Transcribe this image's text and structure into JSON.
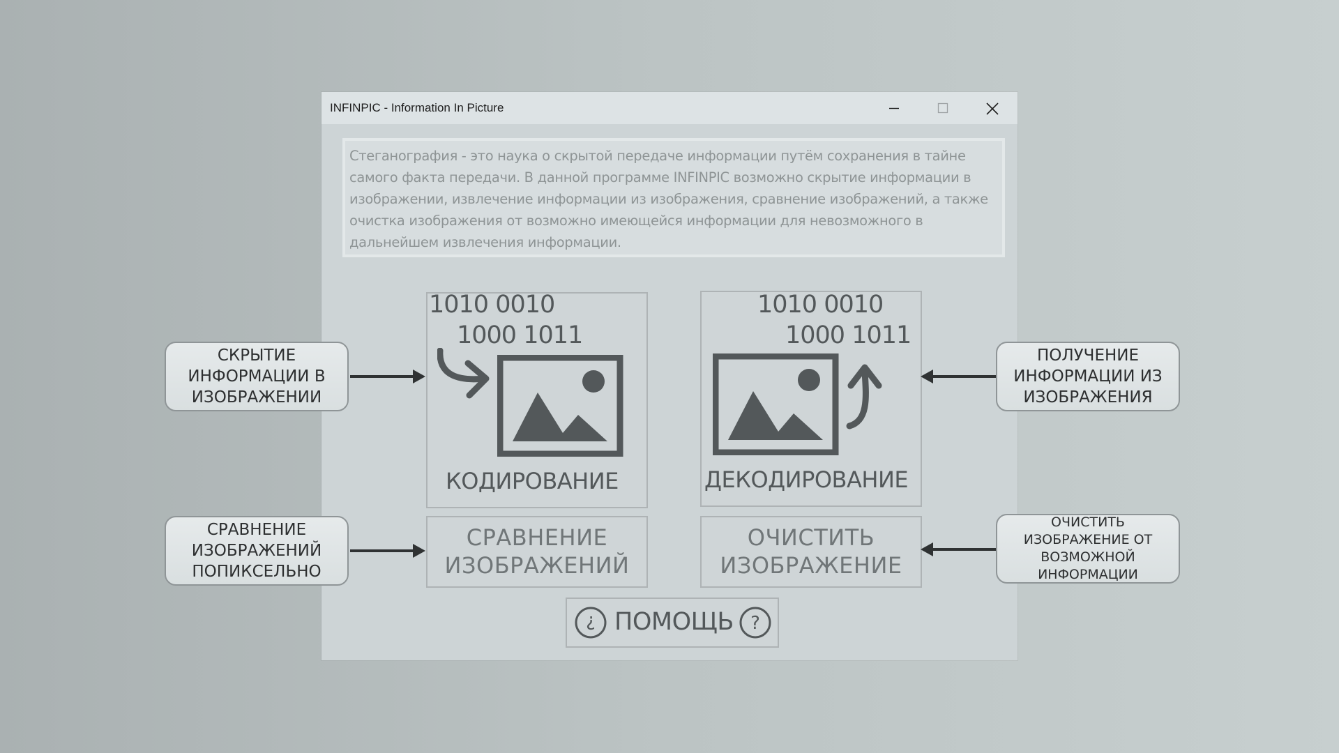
{
  "window": {
    "title": "INFINPIC - Information In Picture",
    "minimize_icon": "minimize-icon",
    "maximize_icon": "maximize-icon",
    "close_icon": "close-icon"
  },
  "description": "Стеганография - это наука о скрытой передаче информации путём сохранения в тайне самого факта передачи. В данной программе  INFINPIC возможно скрытие информации в изображении, извлечение информации из изображения, сравнение изображений, а также очистка изображения от возможно имеющейся информации для невозможного в дальнейшем извлечения информации.",
  "tiles": {
    "encode": {
      "binary_line1": "1010 0010",
      "binary_line2": "1000 1011",
      "label": "КОДИРОВАНИЕ",
      "icon": "image-icon"
    },
    "decode": {
      "binary_line1": "1010 0010",
      "binary_line2": "1000 1011",
      "label": "ДЕКОДИРОВАНИЕ",
      "icon": "image-icon"
    },
    "compare": {
      "line1": "СРАВНЕНИЕ",
      "line2": "ИЗОБРАЖЕНИЙ"
    },
    "clear": {
      "line1": "ОЧИСТИТЬ",
      "line2": "ИЗОБРАЖЕНИЕ"
    },
    "help": {
      "label": "ПОМОЩЬ"
    }
  },
  "callouts": {
    "hide": [
      "СКРЫТИЕ",
      "ИНФОРМАЦИИ В",
      "ИЗОБРАЖЕНИИ"
    ],
    "extract": [
      "ПОЛУЧЕНИЕ",
      "ИНФОРМАЦИИ ИЗ",
      "ИЗОБРАЖЕНИЯ"
    ],
    "compare": [
      "СРАВНЕНИЕ",
      "ИЗОБРАЖЕНИЙ",
      "ПОПИКСЕЛЬНО"
    ],
    "clear": [
      "ОЧИСТИТЬ",
      "ИЗОБРАЖЕНИЕ ОТ",
      "ВОЗМОЖНОЙ",
      "ИНФОРМАЦИИ"
    ]
  },
  "colors": {
    "background": "#b5bdbe",
    "window": "#cdd4d6",
    "titlebar": "#dde3e5",
    "tile_ink": "#53585a",
    "callout_fill": "#e2e7e8"
  }
}
